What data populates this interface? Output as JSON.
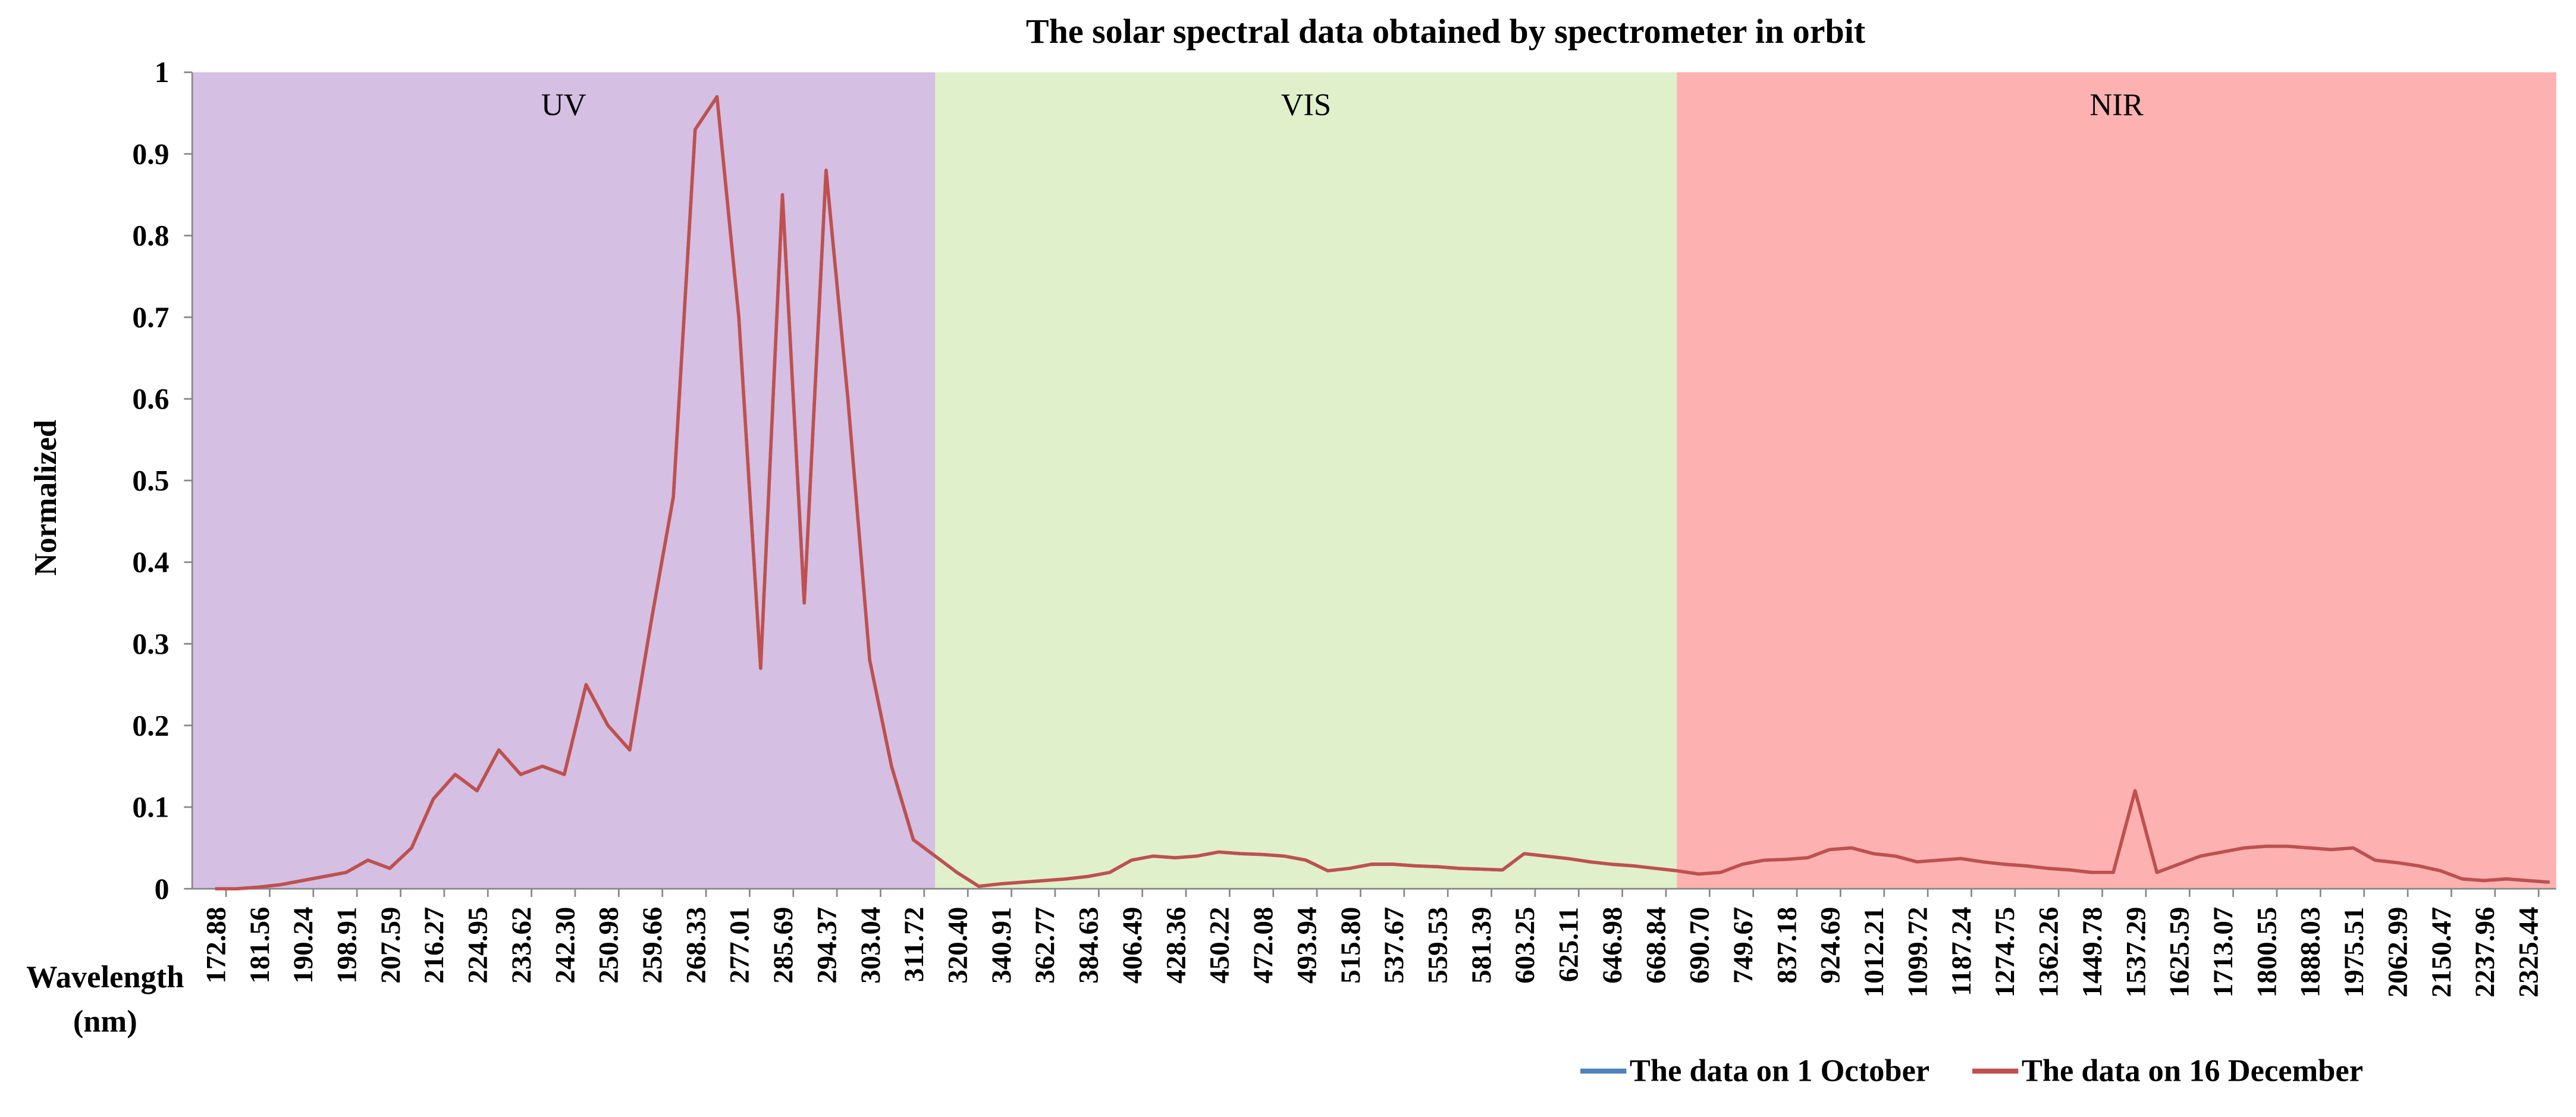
{
  "chart_data": {
    "type": "line",
    "title": "The solar spectral data obtained by spectrometer in orbit",
    "x_label": "Wavelength (nm)",
    "y_label": "Normalized",
    "categories": [
      "172.88",
      null,
      "181.56",
      null,
      "190.24",
      null,
      "198.91",
      null,
      "207.59",
      null,
      "216.27",
      null,
      "224.95",
      null,
      "233.62",
      null,
      "242.30",
      null,
      "250.98",
      null,
      "259.66",
      null,
      "268.33",
      null,
      "277.01",
      null,
      "285.69",
      null,
      "294.37",
      null,
      "303.04",
      null,
      "311.72",
      null,
      "320.40",
      null,
      "340.91",
      null,
      "362.77",
      null,
      "384.63",
      null,
      "406.49",
      null,
      "428.36",
      null,
      "450.22",
      null,
      "472.08",
      null,
      "493.94",
      null,
      "515.80",
      null,
      "537.67",
      null,
      "559.53",
      null,
      "581.39",
      null,
      "603.25",
      null,
      "625.11",
      null,
      "646.98",
      null,
      "668.84",
      null,
      "690.70",
      null,
      "749.67",
      null,
      "837.18",
      null,
      "924.69",
      null,
      "1012.21",
      null,
      "1099.72",
      null,
      "1187.24",
      null,
      "1274.75",
      null,
      "1362.26",
      null,
      "1449.78",
      null,
      "1537.29",
      null,
      "1625.59",
      null,
      "1713.07",
      null,
      "1800.55",
      null,
      "1888.03",
      null,
      "1975.51",
      null,
      "2062.99",
      null,
      "2150.47",
      null,
      "2237.96",
      null,
      "2325.44",
      null
    ],
    "series": [
      {
        "name": "The data on 1 October",
        "color": "#4f81bd",
        "values": [
          0,
          0,
          0.002,
          0.005,
          0.01,
          0.015,
          0.02,
          0.035,
          0.025,
          0.05,
          0.11,
          0.14,
          0.12,
          0.17,
          0.14,
          0.15,
          0.14,
          0.25,
          0.2,
          0.17,
          0.33,
          0.48,
          0.93,
          0.97,
          0.7,
          0.27,
          0.85,
          0.35,
          0.88,
          0.6,
          0.28,
          0.15,
          0.06,
          0.04,
          0.02,
          0.003,
          0.006,
          0.008,
          0.01,
          0.012,
          0.015,
          0.02,
          0.035,
          0.04,
          0.038,
          0.04,
          0.045,
          0.043,
          0.042,
          0.04,
          0.035,
          0.022,
          0.025,
          0.03,
          0.03,
          0.028,
          0.027,
          0.025,
          0.024,
          0.023,
          0.043,
          0.04,
          0.037,
          0.033,
          0.03,
          0.028,
          0.025,
          0.022,
          0.018,
          0.02,
          0.03,
          0.035,
          0.036,
          0.038,
          0.048,
          0.05,
          0.043,
          0.04,
          0.033,
          0.035,
          0.037,
          0.033,
          0.03,
          0.028,
          0.025,
          0.023,
          0.02,
          0.02,
          0.12,
          0.02,
          0.03,
          0.04,
          0.045,
          0.05,
          0.052,
          0.052,
          0.05,
          0.048,
          0.05,
          0.035,
          0.032,
          0.028,
          0.022,
          0.012,
          0.01,
          0.012,
          0.01,
          0.008
        ]
      },
      {
        "name": "The data on 16 December",
        "color": "#c0504d",
        "values": [
          0,
          0,
          0.002,
          0.005,
          0.01,
          0.015,
          0.02,
          0.035,
          0.025,
          0.05,
          0.11,
          0.14,
          0.12,
          0.17,
          0.14,
          0.15,
          0.14,
          0.25,
          0.2,
          0.17,
          0.33,
          0.48,
          0.93,
          0.97,
          0.7,
          0.27,
          0.85,
          0.35,
          0.88,
          0.6,
          0.28,
          0.15,
          0.06,
          0.04,
          0.02,
          0.003,
          0.006,
          0.008,
          0.01,
          0.012,
          0.015,
          0.02,
          0.035,
          0.04,
          0.038,
          0.04,
          0.045,
          0.043,
          0.042,
          0.04,
          0.035,
          0.022,
          0.025,
          0.03,
          0.03,
          0.028,
          0.027,
          0.025,
          0.024,
          0.023,
          0.043,
          0.04,
          0.037,
          0.033,
          0.03,
          0.028,
          0.025,
          0.022,
          0.018,
          0.02,
          0.03,
          0.035,
          0.036,
          0.038,
          0.048,
          0.05,
          0.043,
          0.04,
          0.033,
          0.035,
          0.037,
          0.033,
          0.03,
          0.028,
          0.025,
          0.023,
          0.02,
          0.02,
          0.12,
          0.02,
          0.03,
          0.04,
          0.045,
          0.05,
          0.052,
          0.052,
          0.05,
          0.048,
          0.05,
          0.035,
          0.032,
          0.028,
          0.022,
          0.012,
          0.01,
          0.012,
          0.01,
          0.008
        ]
      }
    ],
    "regions": [
      {
        "label": "UV",
        "color": "#d5bfe3",
        "start": "172.88",
        "end": "311.72"
      },
      {
        "label": "VIS",
        "color": "#dff0cb",
        "start": "320.40",
        "end": "668.84"
      },
      {
        "label": "NIR",
        "color": "#fdb1b1",
        "start": "690.70",
        "end": "2325.44"
      }
    ],
    "ylim": [
      0,
      1
    ],
    "yticks": [
      0,
      0.1,
      0.2,
      0.3,
      0.4,
      0.5,
      0.6,
      0.7,
      0.8,
      0.9,
      1
    ],
    "grid": false,
    "legend": "bottom-right"
  }
}
